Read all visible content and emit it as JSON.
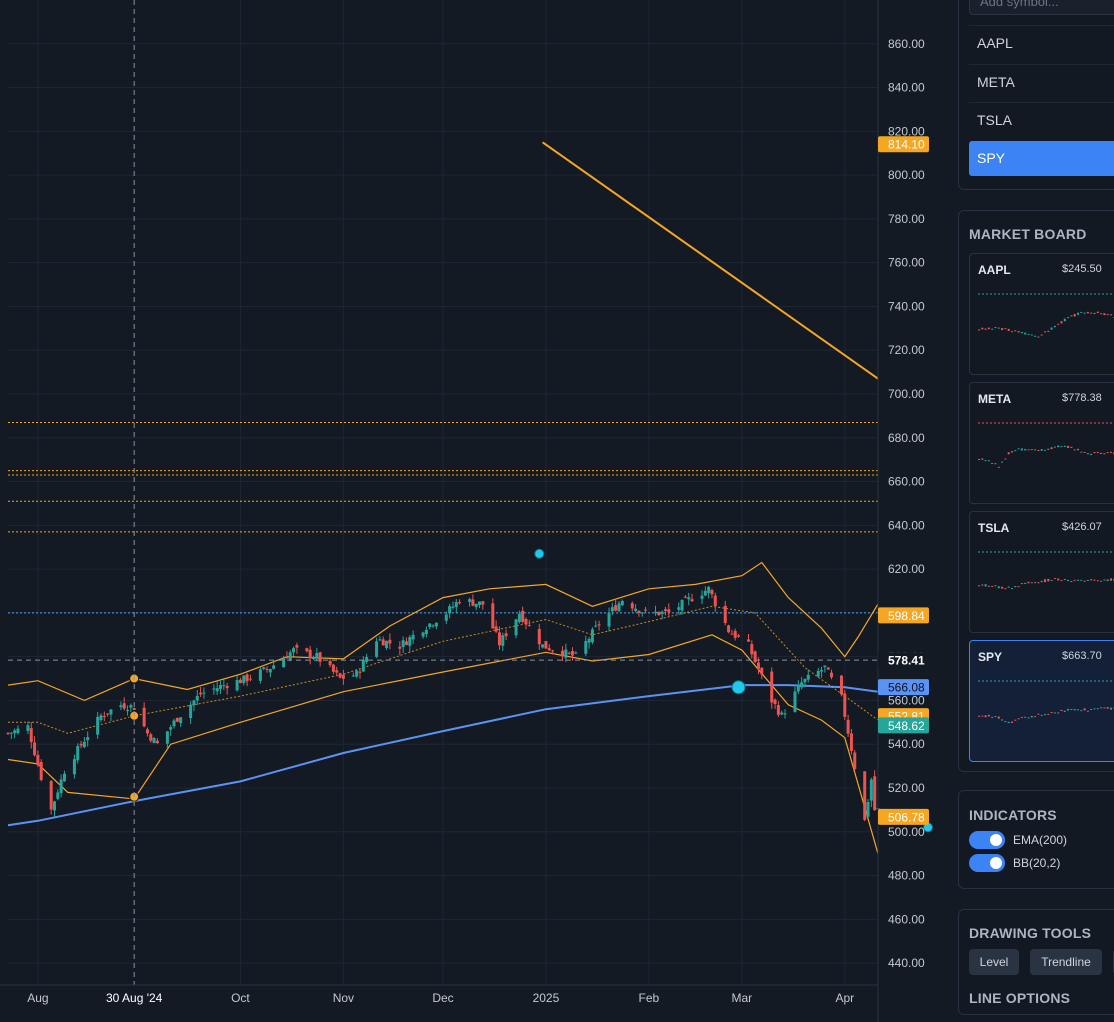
{
  "chart_data": {
    "type": "candlestick",
    "symbol": "SPY",
    "ylim": [
      430,
      880
    ],
    "y_ticks": [
      440,
      460,
      480,
      500,
      520,
      540,
      560,
      580,
      600,
      620,
      640,
      660,
      680,
      700,
      720,
      740,
      760,
      780,
      800,
      820,
      840,
      860
    ],
    "x_ticks": [
      {
        "label": "Aug",
        "date": "2024-08-01"
      },
      {
        "label": "Oct",
        "date": "2024-10-01"
      },
      {
        "label": "Nov",
        "date": "2024-11-01"
      },
      {
        "label": "Dec",
        "date": "2024-12-01"
      },
      {
        "label": "2025",
        "date": "2025-01-01"
      },
      {
        "label": "Feb",
        "date": "2025-02-01"
      },
      {
        "label": "Mar",
        "date": "2025-03-01"
      },
      {
        "label": "Apr",
        "date": "2025-04-01"
      }
    ],
    "x_range": [
      "2024-07-23",
      "2025-04-11"
    ],
    "crosshair": {
      "date": "2024-08-30",
      "date_label": "30 Aug '24",
      "price": 578.41,
      "price_label": "578.41"
    },
    "price_path": [
      [
        "2024-07-23",
        545
      ],
      [
        "2024-07-29",
        548
      ],
      [
        "2024-08-02",
        525
      ],
      [
        "2024-08-05",
        510
      ],
      [
        "2024-08-09",
        528
      ],
      [
        "2024-08-15",
        542
      ],
      [
        "2024-08-20",
        553
      ],
      [
        "2024-08-26",
        558
      ],
      [
        "2024-08-30",
        557
      ],
      [
        "2024-09-03",
        545
      ],
      [
        "2024-09-06",
        540
      ],
      [
        "2024-09-12",
        552
      ],
      [
        "2024-09-19",
        563
      ],
      [
        "2024-09-26",
        567
      ],
      [
        "2024-10-03",
        570
      ],
      [
        "2024-10-10",
        575
      ],
      [
        "2024-10-17",
        583
      ],
      [
        "2024-10-24",
        580
      ],
      [
        "2024-10-31",
        570
      ],
      [
        "2024-11-05",
        572
      ],
      [
        "2024-11-11",
        588
      ],
      [
        "2024-11-18",
        585
      ],
      [
        "2024-11-25",
        593
      ],
      [
        "2024-12-02",
        600
      ],
      [
        "2024-12-06",
        606
      ],
      [
        "2024-12-13",
        604
      ],
      [
        "2024-12-18",
        586
      ],
      [
        "2024-12-24",
        600
      ],
      [
        "2024-12-31",
        585
      ],
      [
        "2025-01-10",
        580
      ],
      [
        "2025-01-17",
        595
      ],
      [
        "2025-01-24",
        606
      ],
      [
        "2025-01-31",
        600
      ],
      [
        "2025-02-07",
        600
      ],
      [
        "2025-02-14",
        607
      ],
      [
        "2025-02-19",
        611
      ],
      [
        "2025-02-25",
        592
      ],
      [
        "2025-03-03",
        585
      ],
      [
        "2025-03-10",
        560
      ],
      [
        "2025-03-13",
        553
      ],
      [
        "2025-03-19",
        568
      ],
      [
        "2025-03-26",
        575
      ],
      [
        "2025-03-31",
        561
      ],
      [
        "2025-04-03",
        538
      ],
      [
        "2025-04-07",
        505
      ],
      [
        "2025-04-09",
        524
      ],
      [
        "2025-04-10",
        510
      ]
    ],
    "ema200": {
      "name": "EMA(200)",
      "color": "#5b93f5",
      "points": [
        [
          "2024-07-23",
          503
        ],
        [
          "2024-08-01",
          505
        ],
        [
          "2024-08-30",
          514
        ],
        [
          "2024-10-01",
          523
        ],
        [
          "2024-11-01",
          536
        ],
        [
          "2024-12-01",
          546
        ],
        [
          "2025-01-01",
          556
        ],
        [
          "2025-02-01",
          562
        ],
        [
          "2025-03-01",
          567
        ],
        [
          "2025-03-15",
          567
        ],
        [
          "2025-04-01",
          566
        ],
        [
          "2025-04-11",
          564
        ]
      ]
    },
    "bollinger": {
      "name": "BB(20,2)",
      "color": "#f5a623",
      "upper": [
        [
          "2024-07-23",
          567
        ],
        [
          "2024-08-01",
          569
        ],
        [
          "2024-08-15",
          560
        ],
        [
          "2024-08-30",
          570
        ],
        [
          "2024-09-15",
          565
        ],
        [
          "2024-10-01",
          572
        ],
        [
          "2024-10-15",
          580
        ],
        [
          "2024-11-01",
          579
        ],
        [
          "2024-11-15",
          594
        ],
        [
          "2024-12-01",
          607
        ],
        [
          "2024-12-15",
          611
        ],
        [
          "2025-01-01",
          613
        ],
        [
          "2025-01-15",
          603
        ],
        [
          "2025-02-01",
          611
        ],
        [
          "2025-02-15",
          613
        ],
        [
          "2025-03-01",
          617
        ],
        [
          "2025-03-07",
          623
        ],
        [
          "2025-03-15",
          607
        ],
        [
          "2025-03-25",
          593
        ],
        [
          "2025-04-01",
          580
        ],
        [
          "2025-04-05",
          589
        ],
        [
          "2025-04-11",
          604
        ]
      ],
      "middle": [
        [
          "2024-07-23",
          550
        ],
        [
          "2024-08-01",
          550
        ],
        [
          "2024-08-10",
          545
        ],
        [
          "2024-08-30",
          553
        ],
        [
          "2024-10-01",
          562
        ],
        [
          "2024-11-01",
          572
        ],
        [
          "2024-12-01",
          587
        ],
        [
          "2025-01-01",
          597
        ],
        [
          "2025-01-15",
          590
        ],
        [
          "2025-02-01",
          596
        ],
        [
          "2025-02-20",
          603
        ],
        [
          "2025-03-05",
          600
        ],
        [
          "2025-03-20",
          575
        ],
        [
          "2025-04-01",
          562
        ],
        [
          "2025-04-11",
          551
        ]
      ],
      "lower": [
        [
          "2024-07-23",
          533
        ],
        [
          "2024-08-01",
          531
        ],
        [
          "2024-08-10",
          518
        ],
        [
          "2024-08-30",
          515
        ],
        [
          "2024-09-10",
          540
        ],
        [
          "2024-10-01",
          550
        ],
        [
          "2024-11-01",
          564
        ],
        [
          "2024-12-01",
          573
        ],
        [
          "2025-01-01",
          582
        ],
        [
          "2025-01-15",
          578
        ],
        [
          "2025-02-01",
          581
        ],
        [
          "2025-02-20",
          590
        ],
        [
          "2025-03-01",
          583
        ],
        [
          "2025-03-15",
          558
        ],
        [
          "2025-03-25",
          551
        ],
        [
          "2025-04-01",
          543
        ],
        [
          "2025-04-11",
          490
        ]
      ]
    },
    "bb_markers": [
      {
        "date": "2024-08-30",
        "value": 570
      },
      {
        "date": "2024-08-30",
        "value": 553
      },
      {
        "date": "2024-08-30",
        "value": 516
      }
    ],
    "signals": [
      {
        "date": "2024-12-30",
        "value": 627
      },
      {
        "date": "2025-02-28",
        "value": 566
      },
      {
        "date": "2025-04-11",
        "value": 502
      }
    ],
    "horizontal_levels": [
      {
        "value": 687,
        "color": "#f5a623"
      },
      {
        "value": 665,
        "color": "#f5a623"
      },
      {
        "value": 663,
        "color": "#f5a623"
      },
      {
        "value": 651,
        "color": "#f5a623"
      },
      {
        "value": 637,
        "color": "#f5a623"
      },
      {
        "value": 600,
        "color": "#4aa3ff"
      }
    ],
    "trendline": {
      "start": [
        "2024-12-31",
        815
      ],
      "end": [
        "2025-04-11",
        707
      ],
      "color": "#f5a623"
    },
    "price_badges": [
      {
        "value": 814.1,
        "label": "814.10",
        "color": "#f5a623"
      },
      {
        "value": 598.84,
        "label": "598.84",
        "color": "#f5a623"
      },
      {
        "value": 566.08,
        "label": "566.08",
        "color": "#5b93f5"
      },
      {
        "value": 552.81,
        "label": "552.81",
        "color": "#f5a623"
      },
      {
        "value": 548.62,
        "label": "548.62",
        "color": "#26a69a"
      },
      {
        "value": 506.78,
        "label": "506.78",
        "color": "#f5a623"
      }
    ]
  },
  "sidebar": {
    "watchlist": {
      "placeholder": "Add symbol...",
      "items": [
        {
          "symbol": "AAPL",
          "active": false
        },
        {
          "symbol": "META",
          "active": false
        },
        {
          "symbol": "TSLA",
          "active": false
        },
        {
          "symbol": "SPY",
          "active": true
        }
      ]
    },
    "market_board": {
      "title": "MARKET BOARD",
      "cards": [
        {
          "symbol": "AAPL",
          "price": "$245.50",
          "active": false,
          "ref_color": "#26a69a"
        },
        {
          "symbol": "META",
          "price": "$778.38",
          "active": false,
          "ref_color": "#ef5350"
        },
        {
          "symbol": "TSLA",
          "price": "$426.07",
          "active": false,
          "ref_color": "#26a69a"
        },
        {
          "symbol": "SPY",
          "price": "$663.70",
          "active": true,
          "ref_color": "#26a69a"
        }
      ]
    },
    "indicators": {
      "title": "INDICATORS",
      "items": [
        {
          "label": "EMA(200)",
          "on": true
        },
        {
          "label": "BB(20,2)",
          "on": true
        }
      ]
    },
    "drawing_tools": {
      "title": "DRAWING TOOLS",
      "buttons": [
        "Level",
        "Trendline"
      ]
    },
    "line_options": {
      "title": "LINE OPTIONS"
    }
  },
  "colors": {
    "up": "#26a69a",
    "down": "#ef5350",
    "accent": "#3c83f6",
    "background": "#131a24",
    "grid": "#1e2633"
  }
}
